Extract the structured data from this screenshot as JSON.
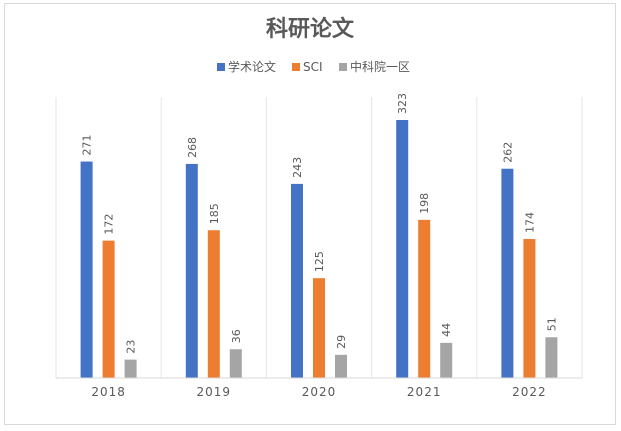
{
  "chart_data": {
    "type": "bar",
    "title": "科研论文",
    "categories": [
      "2018",
      "2019",
      "2020",
      "2021",
      "2022"
    ],
    "series": [
      {
        "name": "学术论文",
        "values": [
          271,
          268,
          243,
          323,
          262
        ],
        "color": "#4472C4"
      },
      {
        "name": "SCI",
        "values": [
          172,
          185,
          125,
          198,
          174
        ],
        "color": "#ED7D31"
      },
      {
        "name": "中科院一区",
        "values": [
          23,
          36,
          29,
          44,
          51
        ],
        "color": "#A5A5A5"
      }
    ],
    "ylim": [
      0,
      350
    ],
    "grid": "vertical category separators",
    "legend": "top-center",
    "data_labels": true,
    "xlabel": "",
    "ylabel": ""
  }
}
